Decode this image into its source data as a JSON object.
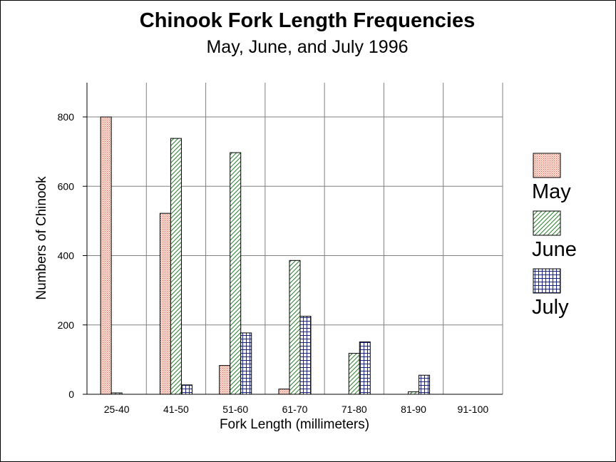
{
  "chart_data": {
    "type": "bar",
    "title": "Chinook Fork Length Frequencies",
    "subtitle": "May, June, and July 1996",
    "xlabel": "Fork Length (millimeters)",
    "ylabel": "Numbers of Chinook",
    "categories": [
      "25-40",
      "41-50",
      "51-60",
      "61-70",
      "71-80",
      "81-90",
      "91-100"
    ],
    "series": [
      {
        "name": "May",
        "values": [
          800,
          522,
          83,
          15,
          0,
          0,
          0
        ],
        "color": "#e05a44",
        "pattern": "dots"
      },
      {
        "name": "June",
        "values": [
          4,
          738,
          697,
          386,
          118,
          7,
          0
        ],
        "color": "#2e7d32",
        "pattern": "diagonal"
      },
      {
        "name": "July",
        "values": [
          0,
          27,
          177,
          225,
          151,
          55,
          0
        ],
        "color": "#1a237e",
        "pattern": "grid"
      }
    ],
    "ylim": [
      0,
      900
    ],
    "yticks": [
      0,
      200,
      400,
      600,
      800
    ],
    "grid": true,
    "legend_position": "right"
  }
}
